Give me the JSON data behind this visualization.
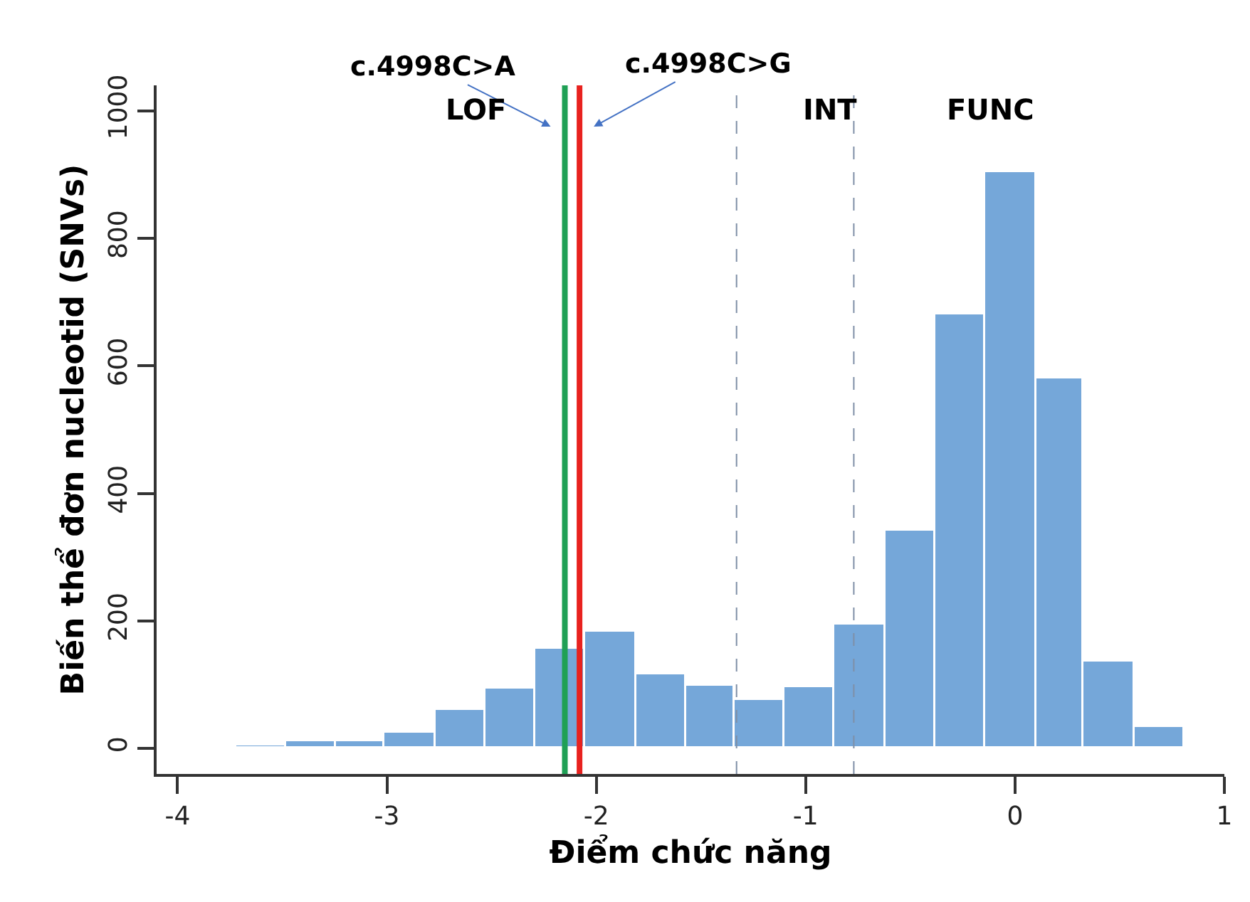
{
  "chart_data": {
    "type": "histogram",
    "xlabel": "Điểm chức năng",
    "ylabel": "Biến thể đơn nucleotid (SNVs)",
    "bins": [
      -3.96,
      -3.72,
      -3.48,
      -3.24,
      -3.01,
      -2.77,
      -2.53,
      -2.29,
      -2.05,
      -1.81,
      -1.57,
      -1.34,
      -1.1,
      -0.86,
      -0.62,
      -0.38,
      -0.14,
      0.1,
      0.33,
      0.57,
      0.81
    ],
    "values": [
      2,
      5,
      11,
      11,
      24,
      60,
      93,
      157,
      183,
      117,
      99,
      77,
      97,
      194,
      342,
      680,
      905,
      580,
      137,
      33
    ],
    "color": "#75a7d9",
    "xlim": [
      -4.1,
      1.0
    ],
    "ylim": [
      -40,
      1040
    ],
    "xticks": [
      -4,
      -3,
      -2,
      -1,
      0,
      1
    ],
    "yticks": [
      0,
      200,
      400,
      600,
      800,
      1000
    ],
    "ref_lines": [
      {
        "axis": "x",
        "value": -2.15,
        "label": "c.4998C>A",
        "color": "#1fa055",
        "line_style": "solid"
      },
      {
        "axis": "x",
        "value": -2.08,
        "label": "c.4998C>G",
        "color": "#e8221f",
        "line_style": "solid"
      },
      {
        "axis": "x",
        "value": -1.33,
        "color": "#7f8fa6",
        "line_style": "dashed"
      },
      {
        "axis": "x",
        "value": -0.77,
        "color": "#7f8fa6",
        "line_style": "dashed"
      }
    ],
    "annotations": [
      "LOF",
      "INT",
      "FUNC"
    ]
  }
}
